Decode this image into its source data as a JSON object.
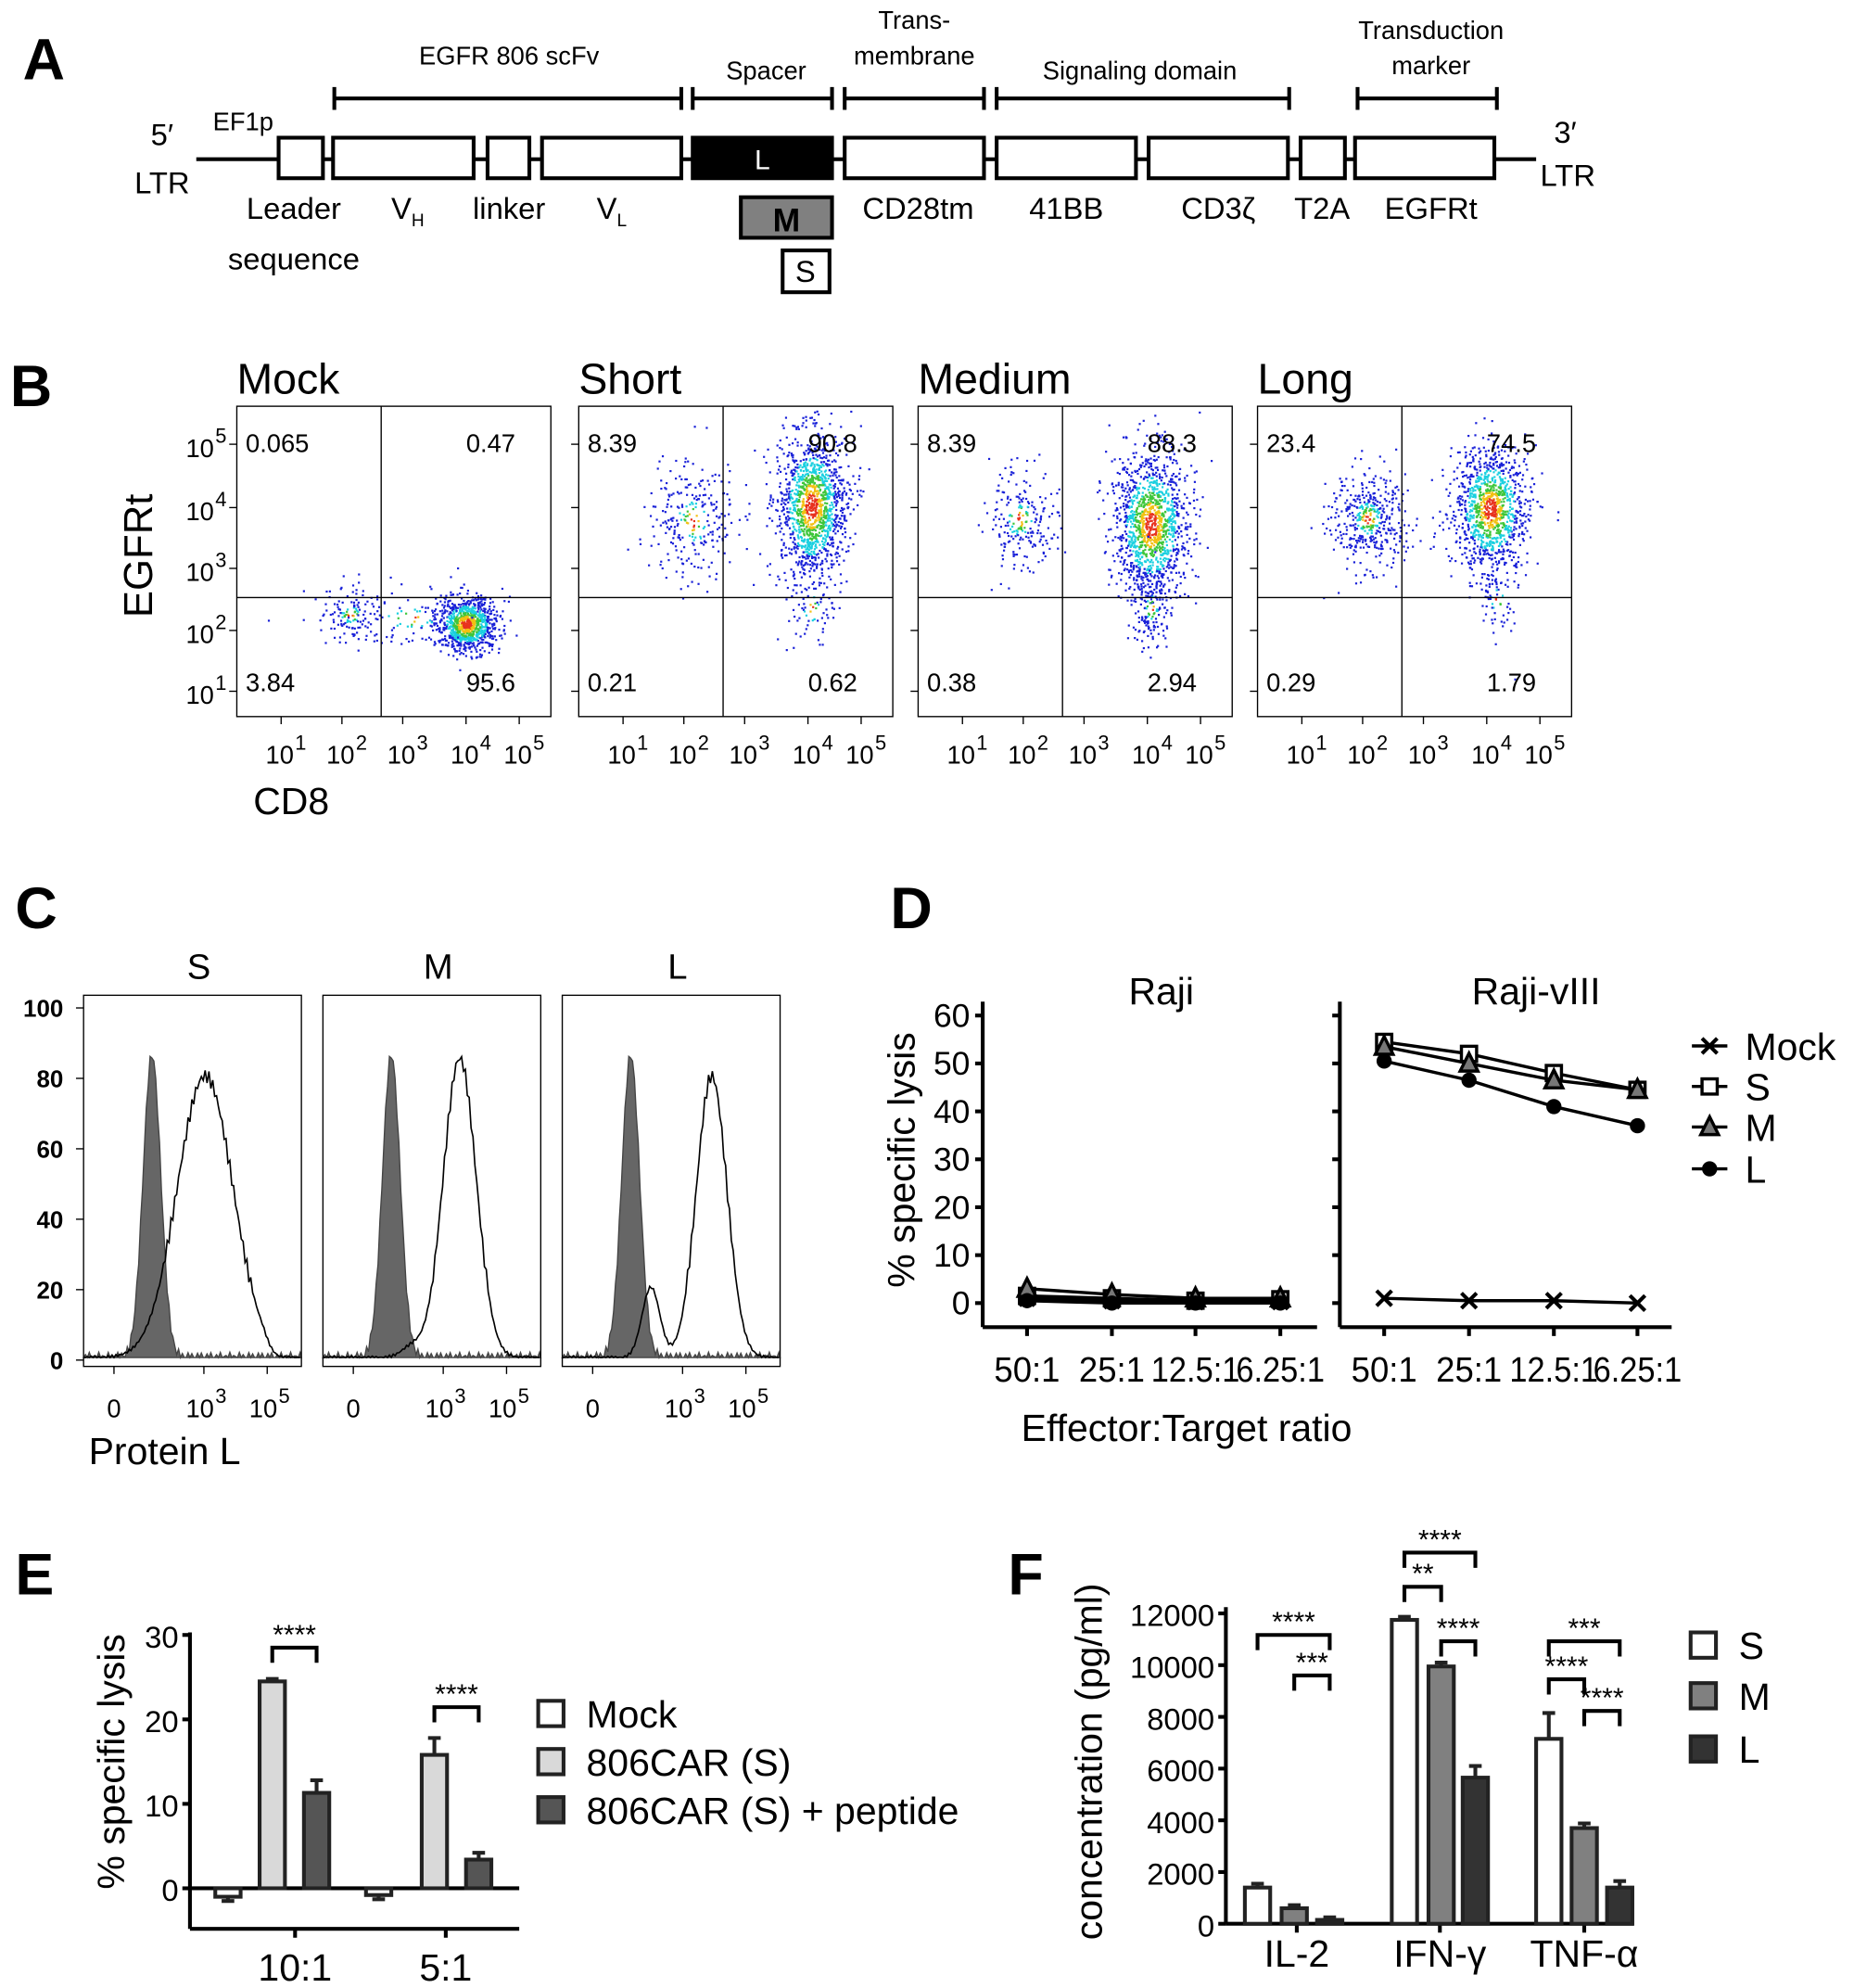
{
  "panel_labels": [
    "A",
    "B",
    "C",
    "D",
    "E",
    "F"
  ],
  "panel_a": {
    "left_end": {
      "prime": "5′",
      "ltr": "LTR"
    },
    "right_end": {
      "prime": "3′",
      "ltr": "LTR"
    },
    "promoter": "EF1p",
    "segments": [
      {
        "name": "Leader",
        "label2": "sequence"
      },
      {
        "name": "V",
        "sub": "H"
      },
      {
        "name": "linker"
      },
      {
        "name": "V",
        "sub": "L"
      },
      {
        "name": "L",
        "fill": "#000000"
      },
      {
        "name": "CD28tm"
      },
      {
        "name": "41BB"
      },
      {
        "name": "CD3ζ"
      },
      {
        "name": "T2A"
      },
      {
        "name": "EGFRt"
      }
    ],
    "spacer_variants": [
      {
        "name": "M",
        "fill": "#808080"
      },
      {
        "name": "S",
        "fill": "#ffffff"
      }
    ],
    "domain_brackets": [
      {
        "label": "EGFR 806 scFv"
      },
      {
        "label": "Spacer"
      },
      {
        "label": "Trans-",
        "label2": "membrane"
      },
      {
        "label": "Signaling domain"
      },
      {
        "label": "Transduction",
        "label2": "marker"
      }
    ]
  },
  "chart_data": [
    {
      "panel": "B",
      "type": "scatter",
      "xlabel": "CD8",
      "ylabel": "EGFRt",
      "x_scale": "log",
      "y_scale": "log",
      "tick_labels": [
        "10^1",
        "10^2",
        "10^3",
        "10^4",
        "10^5"
      ],
      "plots": [
        {
          "title": "Mock",
          "quadrants": {
            "upper_left": "0.065",
            "upper_right": "0.47",
            "lower_left": "3.84",
            "lower_right": "95.6"
          }
        },
        {
          "title": "Short",
          "quadrants": {
            "upper_left": "8.39",
            "upper_right": "90.8",
            "lower_left": "0.21",
            "lower_right": "0.62"
          }
        },
        {
          "title": "Medium",
          "quadrants": {
            "upper_left": "8.39",
            "upper_right": "88.3",
            "lower_left": "0.38",
            "lower_right": "2.94"
          }
        },
        {
          "title": "Long",
          "quadrants": {
            "upper_left": "23.4",
            "upper_right": "74.5",
            "lower_left": "0.29",
            "lower_right": "1.79"
          }
        }
      ]
    },
    {
      "panel": "C",
      "type": "area",
      "xlabel": "Protein L",
      "y_ticks": [
        0,
        20,
        40,
        60,
        80,
        100
      ],
      "ylim": [
        0,
        100
      ],
      "x_tick_labels": [
        "0",
        "10^3",
        "10^5"
      ],
      "plots": [
        {
          "title": "S"
        },
        {
          "title": "M"
        },
        {
          "title": "L"
        }
      ],
      "control_fill": "#666666"
    },
    {
      "panel": "D",
      "type": "line",
      "ylabel": "% specific lysis",
      "xlabel": "Effector:Target ratio",
      "ylim": [
        0,
        60
      ],
      "y_ticks": [
        0,
        10,
        20,
        30,
        40,
        50,
        60
      ],
      "categories": [
        "50:1",
        "25:1",
        "12.5:1",
        "6.25:1"
      ],
      "legend": "right",
      "subplots": [
        {
          "title": "Raji",
          "series": [
            {
              "name": "Mock",
              "marker": "x",
              "values": [
                1,
                0.5,
                0.3,
                0.3
              ]
            },
            {
              "name": "S",
              "marker": "square",
              "values": [
                1.5,
                1,
                0.5,
                0.8
              ]
            },
            {
              "name": "M",
              "marker": "triangle",
              "values": [
                3,
                1.8,
                1,
                1
              ]
            },
            {
              "name": "L",
              "marker": "circle",
              "values": [
                0.5,
                0,
                0,
                0
              ]
            }
          ]
        },
        {
          "title": "Raji-vIII",
          "series": [
            {
              "name": "Mock",
              "marker": "x",
              "values": [
                1,
                0.5,
                0.5,
                0
              ]
            },
            {
              "name": "S",
              "marker": "square",
              "values": [
                54.5,
                52,
                48,
                44.5
              ]
            },
            {
              "name": "M",
              "marker": "triangle",
              "values": [
                53.5,
                50,
                46.5,
                44.5
              ]
            },
            {
              "name": "L",
              "marker": "circle",
              "values": [
                50.5,
                46.5,
                41,
                37
              ]
            }
          ]
        }
      ]
    },
    {
      "panel": "E",
      "type": "bar",
      "ylabel": "% specific lysis",
      "ylim": [
        -5,
        30
      ],
      "y_ticks": [
        0,
        10,
        20,
        30
      ],
      "categories": [
        "10:1",
        "5:1"
      ],
      "legend": "right",
      "series": [
        {
          "name": "Mock",
          "color": "#ffffff",
          "values": [
            -1,
            -0.8
          ],
          "errors": [
            0.5,
            0.5
          ]
        },
        {
          "name": "806CAR (S)",
          "color": "#d9d9d9",
          "values": [
            24.5,
            15.8
          ],
          "errors": [
            0.3,
            2
          ]
        },
        {
          "name": "806CAR (S) + peptide",
          "color": "#555555",
          "values": [
            11.3,
            3.4
          ],
          "errors": [
            1.5,
            0.8
          ]
        }
      ],
      "significance": [
        {
          "category": "10:1",
          "from": 1,
          "to": 2,
          "label": "****"
        },
        {
          "category": "5:1",
          "from": 1,
          "to": 2,
          "label": "****"
        }
      ]
    },
    {
      "panel": "F",
      "type": "bar",
      "ylabel": "concentration (pg/ml)",
      "ylim": [
        0,
        12000
      ],
      "y_ticks": [
        0,
        2000,
        4000,
        6000,
        8000,
        10000,
        12000
      ],
      "categories": [
        "IL-2",
        "IFN-γ",
        "TNF-α"
      ],
      "legend": "right",
      "series": [
        {
          "name": "S",
          "color": "#ffffff",
          "values": [
            1400,
            11750,
            7150
          ],
          "errors": [
            150,
            120,
            1000
          ]
        },
        {
          "name": "M",
          "color": "#808080",
          "values": [
            600,
            9950,
            3700
          ],
          "errors": [
            120,
            150,
            180
          ]
        },
        {
          "name": "L",
          "color": "#333333",
          "values": [
            150,
            5650,
            1400
          ],
          "errors": [
            100,
            450,
            250
          ]
        }
      ],
      "significance": [
        {
          "category": "IL-2",
          "from": 0,
          "to": 2,
          "label": "****"
        },
        {
          "category": "IL-2",
          "from": 1,
          "to": 2,
          "label": "***"
        },
        {
          "category": "IFN-γ",
          "from": 0,
          "to": 2,
          "label": "****"
        },
        {
          "category": "IFN-γ",
          "from": 0,
          "to": 1,
          "label": "**"
        },
        {
          "category": "IFN-γ",
          "from": 1,
          "to": 2,
          "label": "****"
        },
        {
          "category": "TNF-α",
          "from": 0,
          "to": 2,
          "label": "***"
        },
        {
          "category": "TNF-α",
          "from": 0,
          "to": 1,
          "label": "****"
        },
        {
          "category": "TNF-α",
          "from": 1,
          "to": 2,
          "label": "****"
        }
      ]
    }
  ]
}
